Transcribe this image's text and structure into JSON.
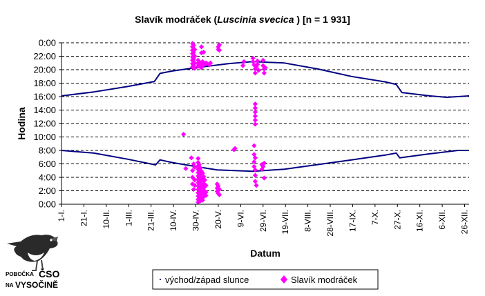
{
  "chart_data": {
    "type": "scatter",
    "title": {
      "prefix": "Slavík modráček (",
      "italic": "Luscinia svecica",
      "suffix": " ) [n = 1 931]"
    },
    "xlabel": "Datum",
    "ylabel": "Hodina",
    "xlim": [
      1,
      365
    ],
    "ylim": [
      0,
      24
    ],
    "grid": "horizontal dashed",
    "legend_position": "bottom",
    "x_tick_labels": [
      {
        "day": 1,
        "label": "1-I."
      },
      {
        "day": 21,
        "label": "21-I."
      },
      {
        "day": 41,
        "label": "10-II."
      },
      {
        "day": 61,
        "label": "1-III."
      },
      {
        "day": 81,
        "label": "21-III."
      },
      {
        "day": 101,
        "label": "10-IV."
      },
      {
        "day": 121,
        "label": "30-IV."
      },
      {
        "day": 141,
        "label": "20-V."
      },
      {
        "day": 161,
        "label": "9-VI."
      },
      {
        "day": 181,
        "label": "29-VI."
      },
      {
        "day": 201,
        "label": "19-VII."
      },
      {
        "day": 221,
        "label": "8-VIII."
      },
      {
        "day": 241,
        "label": "28-VIII."
      },
      {
        "day": 261,
        "label": "17-IX."
      },
      {
        "day": 281,
        "label": "7-X."
      },
      {
        "day": 301,
        "label": "27-X."
      },
      {
        "day": 321,
        "label": "16-XI."
      },
      {
        "day": 341,
        "label": "6-XII."
      },
      {
        "day": 361,
        "label": "26-XII."
      }
    ],
    "y_tick_labels": [
      {
        "value": 0,
        "label": "0:00"
      },
      {
        "value": 2,
        "label": "2:00"
      },
      {
        "value": 4,
        "label": "4:00"
      },
      {
        "value": 6,
        "label": "6:00"
      },
      {
        "value": 8,
        "label": "8:00"
      },
      {
        "value": 10,
        "label": "10:00"
      },
      {
        "value": 12,
        "label": "12:00"
      },
      {
        "value": 14,
        "label": "14:00"
      },
      {
        "value": 16,
        "label": "16:00"
      },
      {
        "value": 18,
        "label": "18:00"
      },
      {
        "value": 20,
        "label": "20:00"
      },
      {
        "value": 22,
        "label": "22:00"
      },
      {
        "value": 24,
        "label": "0:00"
      }
    ],
    "series": [
      {
        "name": "východ/západ slunce",
        "color": "#000080",
        "kind": "line",
        "sunrise": [
          [
            1,
            8.0
          ],
          [
            30,
            7.6
          ],
          [
            60,
            6.7
          ],
          [
            85,
            5.85
          ],
          [
            89,
            6.6
          ],
          [
            100,
            6.2
          ],
          [
            121,
            5.6
          ],
          [
            140,
            5.1
          ],
          [
            172,
            4.9
          ],
          [
            200,
            5.2
          ],
          [
            230,
            5.9
          ],
          [
            260,
            6.6
          ],
          [
            290,
            7.3
          ],
          [
            300,
            7.6
          ],
          [
            303,
            6.9
          ],
          [
            330,
            7.5
          ],
          [
            355,
            8.0
          ],
          [
            365,
            8.0
          ]
        ],
        "sunset": [
          [
            1,
            16.1
          ],
          [
            30,
            16.7
          ],
          [
            60,
            17.5
          ],
          [
            84,
            18.25
          ],
          [
            89,
            19.45
          ],
          [
            100,
            19.8
          ],
          [
            121,
            20.3
          ],
          [
            150,
            20.9
          ],
          [
            172,
            21.2
          ],
          [
            200,
            21.0
          ],
          [
            230,
            20.1
          ],
          [
            260,
            19.0
          ],
          [
            290,
            18.2
          ],
          [
            300,
            17.8
          ],
          [
            305,
            16.6
          ],
          [
            330,
            16.1
          ],
          [
            345,
            15.9
          ],
          [
            365,
            16.1
          ]
        ]
      },
      {
        "name": "Slavík modráček",
        "color": "#ff00ff",
        "kind": "scatter",
        "points": [
          [
            110,
            10.4
          ],
          [
            112,
            5.3
          ],
          [
            117,
            6.9
          ],
          [
            118,
            5.0
          ],
          [
            118,
            4.0
          ],
          [
            118,
            3.0
          ],
          [
            119,
            2.2
          ],
          [
            119,
            6.0
          ],
          [
            120,
            3.6
          ],
          [
            120,
            2.8
          ],
          [
            120,
            5.5
          ],
          [
            123,
            6.8
          ],
          [
            123,
            6.2
          ],
          [
            123,
            5.7
          ],
          [
            123,
            5.2
          ],
          [
            123,
            4.7
          ],
          [
            123,
            4.2
          ],
          [
            123,
            3.7
          ],
          [
            123,
            3.2
          ],
          [
            123,
            2.7
          ],
          [
            123,
            2.2
          ],
          [
            123,
            1.7
          ],
          [
            123,
            1.2
          ],
          [
            123,
            0.7
          ],
          [
            123,
            0.3
          ],
          [
            124,
            5.9
          ],
          [
            124,
            4.9
          ],
          [
            124,
            3.9
          ],
          [
            124,
            2.9
          ],
          [
            124,
            1.9
          ],
          [
            124,
            0.9
          ],
          [
            125,
            5.4
          ],
          [
            125,
            4.4
          ],
          [
            125,
            3.4
          ],
          [
            125,
            2.4
          ],
          [
            125,
            1.4
          ],
          [
            125,
            0.5
          ],
          [
            126,
            4.9
          ],
          [
            126,
            3.9
          ],
          [
            126,
            2.9
          ],
          [
            126,
            1.9
          ],
          [
            126,
            0.9
          ],
          [
            127,
            4.6
          ],
          [
            127,
            3.6
          ],
          [
            127,
            2.6
          ],
          [
            127,
            1.6
          ],
          [
            127,
            0.6
          ],
          [
            128,
            4.1
          ],
          [
            128,
            3.1
          ],
          [
            128,
            2.1
          ],
          [
            128,
            1.1
          ],
          [
            129,
            3.6
          ],
          [
            129,
            2.6
          ],
          [
            129,
            1.6
          ],
          [
            130,
            2.8
          ],
          [
            130,
            1.8
          ],
          [
            130,
            1.3
          ],
          [
            118,
            23.9
          ],
          [
            118,
            23.4
          ],
          [
            118,
            22.9
          ],
          [
            118,
            22.4
          ],
          [
            118,
            21.9
          ],
          [
            118,
            21.4
          ],
          [
            118,
            20.9
          ],
          [
            118,
            20.4
          ],
          [
            119,
            23.6
          ],
          [
            119,
            22.6
          ],
          [
            119,
            21.6
          ],
          [
            119,
            20.6
          ],
          [
            120,
            23.0
          ],
          [
            120,
            22.0
          ],
          [
            120,
            21.0
          ],
          [
            120,
            20.2
          ],
          [
            123,
            21.4
          ],
          [
            123,
            20.9
          ],
          [
            123,
            20.5
          ],
          [
            124,
            21.2
          ],
          [
            124,
            20.7
          ],
          [
            125,
            20.9
          ],
          [
            125,
            20.4
          ],
          [
            126,
            23.4
          ],
          [
            126,
            22.5
          ],
          [
            126,
            21.0
          ],
          [
            126,
            20.3
          ],
          [
            127,
            21.2
          ],
          [
            127,
            20.6
          ],
          [
            128,
            22.6
          ],
          [
            128,
            21.0
          ],
          [
            129,
            20.8
          ],
          [
            130,
            21.0
          ],
          [
            131,
            20.9
          ],
          [
            133,
            20.7
          ],
          [
            134,
            21.0
          ],
          [
            141,
            23.4
          ],
          [
            141,
            23.0
          ],
          [
            142,
            23.7
          ],
          [
            142,
            22.9
          ],
          [
            140,
            3.0
          ],
          [
            140,
            2.4
          ],
          [
            140,
            1.9
          ],
          [
            141,
            2.7
          ],
          [
            141,
            1.6
          ],
          [
            142,
            2.2
          ],
          [
            142,
            1.4
          ],
          [
            155,
            8.1
          ],
          [
            156,
            8.3
          ],
          [
            163,
            20.6
          ],
          [
            164,
            21.2
          ],
          [
            174,
            14.9
          ],
          [
            174,
            14.3
          ],
          [
            174,
            13.7
          ],
          [
            174,
            13.1
          ],
          [
            174,
            12.5
          ],
          [
            174,
            11.9
          ],
          [
            173,
            8.7
          ],
          [
            173,
            7.4
          ],
          [
            173,
            6.3
          ],
          [
            173,
            5.6
          ],
          [
            174,
            6.9
          ],
          [
            174,
            5.1
          ],
          [
            174,
            4.3
          ],
          [
            174,
            3.4
          ],
          [
            175,
            2.8
          ],
          [
            172,
            21.7
          ],
          [
            172,
            21.2
          ],
          [
            173,
            20.7
          ],
          [
            174,
            20.1
          ],
          [
            174,
            19.5
          ],
          [
            175,
            20.4
          ],
          [
            176,
            21.3
          ],
          [
            176,
            20.8
          ],
          [
            177,
            19.9
          ],
          [
            181,
            21.4
          ],
          [
            181,
            20.6
          ],
          [
            182,
            20.1
          ],
          [
            182,
            19.5
          ],
          [
            183,
            20.3
          ],
          [
            180,
            5.9
          ],
          [
            180,
            5.2
          ],
          [
            181,
            5.6
          ],
          [
            182,
            6.1
          ],
          [
            182,
            3.9
          ]
        ]
      }
    ]
  },
  "logo": {
    "small_line1": "POBOČKA",
    "big_line1": "ČSO",
    "small_line2": "NA",
    "big_line2": "VYSOČINĚ"
  }
}
